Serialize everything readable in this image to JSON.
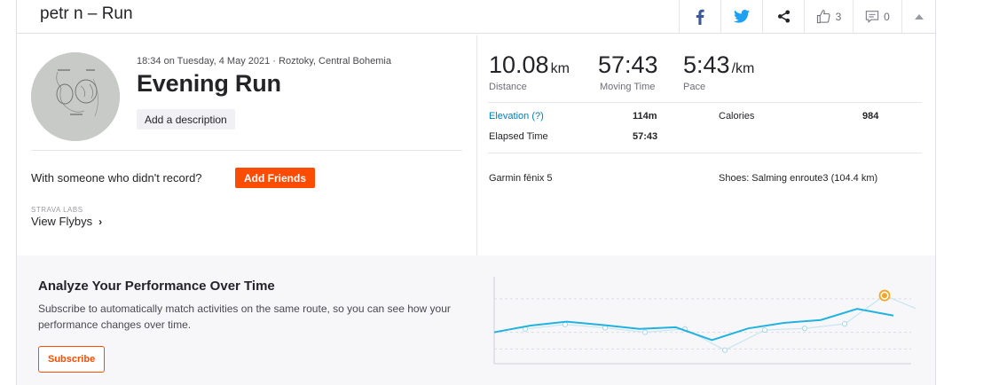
{
  "header": {
    "title": "petr n – Run",
    "kudos_count": "3",
    "comments_count": "0"
  },
  "activity": {
    "meta": "18:34 on Tuesday, 4 May 2021 · Roztoky, Central Bohemia",
    "title": "Evening Run",
    "add_description_label": "Add a description",
    "with_someone_text": "With someone who didn't record?",
    "add_friends_label": "Add Friends",
    "labs_label": "STRAVA LABS",
    "flybys_label": "View Flybys"
  },
  "stats": {
    "distance": {
      "value": "10.08",
      "unit": "km",
      "label": "Distance"
    },
    "moving_time": {
      "value": "57:43",
      "label": "Moving Time"
    },
    "pace": {
      "value": "5:43",
      "unit": "/km",
      "label": "Pace"
    },
    "elevation": {
      "label": "Elevation",
      "help": "(?)",
      "value": "114m"
    },
    "calories": {
      "label": "Calories",
      "value": "984"
    },
    "elapsed": {
      "label": "Elapsed Time",
      "value": "57:43"
    },
    "device": "Garmin fēnix 5",
    "shoes": "Shoes: Salming enroute3 (104.4 km)"
  },
  "analyze": {
    "title": "Analyze Your Performance Over Time",
    "description": "Subscribe to automatically match activities on the same route, so you can see how your performance changes over time.",
    "subscribe_label": "Subscribe"
  },
  "chart_data": {
    "type": "line",
    "title": "",
    "xlabel": "",
    "ylabel": "",
    "series": [
      {
        "values": [
          0.0,
          0.6,
          0.95,
          0.65,
          0.3,
          0.45,
          -0.7,
          0.35,
          0.85,
          1.1,
          2.1,
          1.5
        ]
      },
      {
        "values": [
          0.3,
          0.7,
          0.4,
          0.0,
          0.3,
          -1.6,
          0.2,
          0.35,
          0.75,
          3.3,
          1.8
        ]
      }
    ],
    "highlight_point": {
      "series": 1,
      "index": 9
    },
    "colors": {
      "main_line": "#22b2e0",
      "faint_line": "#c6e6f2",
      "highlight": "#f5a623"
    }
  }
}
